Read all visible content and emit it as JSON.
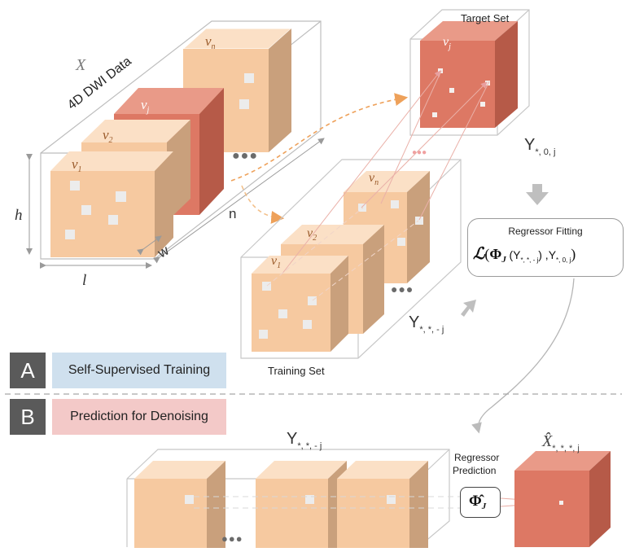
{
  "colors": {
    "cube_front": "#f6c9a0",
    "cube_side": "#c9a07c",
    "cube_top": "#fbe0c6",
    "target_front": "#dd7864",
    "target_side": "#b65a48",
    "target_top": "#e99a88",
    "banner_a": "#cfe0ee",
    "banner_b": "#f3c9c8",
    "badge": "#5a5a5a",
    "arrow_dashed": "#eea15a"
  },
  "labels": {
    "x_symbol": "X",
    "dwi": "4D DWI Data",
    "h": "h",
    "l": "l",
    "w": "w",
    "n": "n",
    "v1": "v",
    "v1_sub": "1",
    "v2": "v",
    "v2_sub": "2",
    "vj": "v",
    "vj_sub": "j",
    "vn": "v",
    "vn_sub": "n",
    "target_set": "Target Set",
    "training_set": "Training Set",
    "y_target": "Y",
    "y_target_sub": "*, 0, j",
    "y_train": "Y",
    "y_train_sub": "*, *, - j",
    "y_pred_input": "Y",
    "y_pred_input_sub": "*, *, - j",
    "regressor_fitting_title": "Regressor Fitting",
    "loss_L": "ℒ",
    "loss_open": "(",
    "loss_phi": "Φ",
    "loss_J": "J",
    "loss_arg1": "(Y",
    "loss_arg1_sub": "*, *, - j",
    "loss_mid": ") ,Y",
    "loss_arg2_sub": "*, 0, j",
    "loss_close": ")",
    "regressor_prediction_1": "Regressor",
    "regressor_prediction_2": "Prediction",
    "phi_hat": "Φ̂",
    "phi_hat_sub": "J",
    "x_hat": "X̂",
    "x_hat_sub": "*, *, *, j",
    "dots": "●●●",
    "pink_dots": "●●●"
  },
  "sections": {
    "a_badge": "A",
    "a_label": "Self-Supervised Training",
    "b_badge": "B",
    "b_label": "Prediction for Denoising"
  }
}
